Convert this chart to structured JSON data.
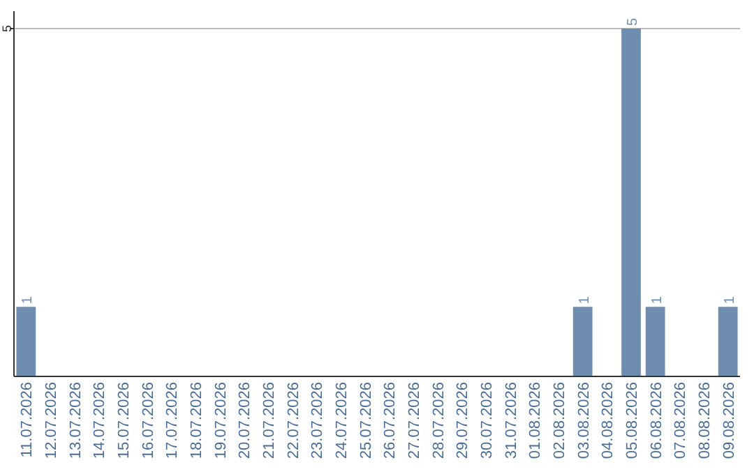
{
  "chart_data": {
    "type": "bar",
    "categories": [
      "11.07.2026",
      "12.07.2026",
      "13.07.2026",
      "14.07.2026",
      "15.07.2026",
      "16.07.2026",
      "17.07.2026",
      "18.07.2026",
      "19.07.2026",
      "20.07.2026",
      "21.07.2026",
      "22.07.2026",
      "23.07.2026",
      "24.07.2026",
      "25.07.2026",
      "26.07.2026",
      "27.07.2026",
      "28.07.2026",
      "29.07.2026",
      "30.07.2026",
      "31.07.2026",
      "01.08.2026",
      "02.08.2026",
      "03.08.2026",
      "04.08.2026",
      "05.08.2026",
      "06.08.2026",
      "07.08.2026",
      "08.08.2026",
      "09.08.2026"
    ],
    "values": [
      1,
      0,
      0,
      0,
      0,
      0,
      0,
      0,
      0,
      0,
      0,
      0,
      0,
      0,
      0,
      0,
      0,
      0,
      0,
      0,
      0,
      0,
      0,
      1,
      0,
      5,
      1,
      0,
      0,
      1
    ],
    "value_labels": [
      "1",
      null,
      null,
      null,
      null,
      null,
      null,
      null,
      null,
      null,
      null,
      null,
      null,
      null,
      null,
      null,
      null,
      null,
      null,
      null,
      null,
      null,
      null,
      "1",
      null,
      "5",
      "1",
      null,
      null,
      "1"
    ],
    "color": "#6f8eaf",
    "ylim": [
      0,
      5.25
    ],
    "yticks": [
      5
    ],
    "grid": "y"
  }
}
